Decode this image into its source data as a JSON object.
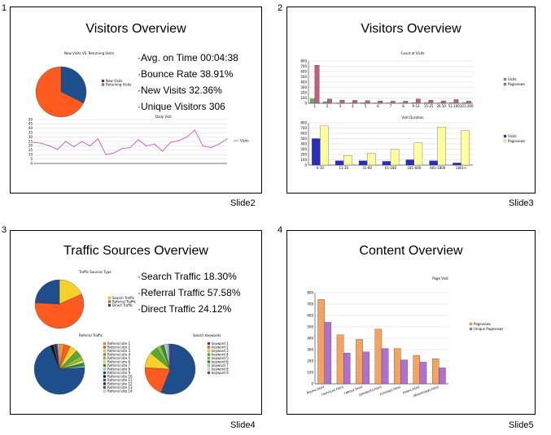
{
  "slides": [
    {
      "number": "1",
      "title": "Visitors Overview",
      "caption": "Slide2",
      "bullets": [
        "Avg. on Time 00:04:38",
        "Bounce Rate 38.91%",
        "New Visits 32.36%",
        "Unique Visitors 306"
      ],
      "pie": {
        "title": "New Visits VS. Returning Visits",
        "legend": [
          "New Visits",
          "Returning Visits"
        ],
        "colors": [
          "#1f4e8c",
          "#ff5a1f"
        ],
        "values": [
          32.36,
          67.64
        ]
      },
      "line": {
        "title": "Daily Visit",
        "legend": "Visits",
        "color": "#c05cc0",
        "yticks": [
          "50",
          "45",
          "40",
          "35",
          "30",
          "25",
          "20",
          "15",
          "10",
          "5",
          "0"
        ],
        "values": [
          24,
          23,
          20,
          16,
          25,
          19,
          25,
          20,
          28,
          10,
          12,
          17,
          18,
          27,
          20,
          22,
          14,
          24,
          26,
          30,
          38,
          20,
          18,
          22,
          28
        ]
      }
    },
    {
      "number": "2",
      "title": "Visitors Overview",
      "caption": "Slide3",
      "count": {
        "title": "Count of Visits",
        "categories": [
          "1",
          "2",
          "3",
          "4",
          "5",
          "6",
          "7",
          "8",
          "9-14",
          "15-25",
          "26-50",
          "51-100",
          "101-200"
        ],
        "series": [
          {
            "name": "Visits",
            "color": "#63b163",
            "values": [
              85,
              30,
              5,
              5,
              10,
              5,
              5,
              5,
              10,
              10,
              5,
              10,
              10
            ]
          },
          {
            "name": "Pageviews",
            "color": "#c0607a",
            "values": [
              720,
              80,
              60,
              55,
              50,
              45,
              40,
              40,
              80,
              60,
              45,
              70,
              40
            ]
          }
        ],
        "ymax": 800,
        "yticks": [
          "800",
          "700",
          "600",
          "500",
          "400",
          "300",
          "200",
          "100",
          "0"
        ]
      },
      "duration": {
        "title": "Visit Duration",
        "categories": [
          "0-10",
          "11-30",
          "31-60",
          "61-180",
          "181-600",
          "601-1800",
          "1801+"
        ],
        "series": [
          {
            "name": "Visits",
            "color": "#2b2bc0",
            "values": [
              500,
              80,
              80,
              70,
              100,
              80,
              40
            ]
          },
          {
            "name": "Pageviews",
            "color": "#ffffa0",
            "values": [
              740,
              180,
              220,
              300,
              420,
              720,
              650
            ]
          }
        ],
        "ymax": 800,
        "yticks": [
          "800",
          "700",
          "600",
          "500",
          "400",
          "300",
          "200",
          "100",
          "0"
        ]
      }
    },
    {
      "number": "3",
      "title": "Traffic Sources Overview",
      "caption": "Slide4",
      "bullets": [
        "Search Traffic 18.30%",
        "Referral Traffic 57.58%",
        "Direct Traffic 24.12%"
      ],
      "pie_main": {
        "title": "Traffic Sources Type",
        "legend": [
          "Search Traffic",
          "Referral Traffic",
          "Direct Traffic"
        ],
        "colors": [
          "#f5d22a",
          "#ff5a1f",
          "#1f4e8c"
        ],
        "values": [
          18.3,
          57.58,
          24.12
        ]
      },
      "pie_referral": {
        "title": "Referral Traffic",
        "legend": [
          "Referral site 1",
          "Referral site 2",
          "Referral site 3",
          "Referral site 4",
          "Referral site 5",
          "Referral site 6",
          "Referral site 7",
          "Referral site 8",
          "Referral site 9",
          "Referral site 10",
          "Referral site 11",
          "Referral site 12",
          "Referral site 13",
          "Referral site 14"
        ],
        "colors": [
          "#f39a2a",
          "#ff5a1f",
          "#f5d22a",
          "#55aa33",
          "#8fbf3f",
          "#dde35b",
          "#2b8f3f",
          "#a0d0e0",
          "#1f4e8c",
          "#111111",
          "#555555",
          "#0a3060",
          "#7a3f99",
          "#e0e0e0"
        ],
        "values": [
          3,
          4,
          5,
          4,
          3,
          2,
          2,
          1,
          70,
          2,
          1,
          1,
          1,
          1
        ]
      },
      "pie_search": {
        "title": "Search Keywords",
        "legend": [
          "keyword 1",
          "keyword 2",
          "keyword 3",
          "keyword 4",
          "keyword 5",
          "keyword 6",
          "keyword 7",
          "keyword 8",
          "keyword 9"
        ],
        "colors": [
          "#1f4e8c",
          "#ff5a1f",
          "#f5d22a",
          "#55aa33",
          "#8fbf3f",
          "#2b8f3f",
          "#a0d0e0",
          "#e0e0e0",
          "#7a3f99"
        ],
        "values": [
          56,
          20,
          10,
          5,
          3,
          2,
          2,
          1,
          1
        ]
      }
    },
    {
      "number": "4",
      "title": "Content Overview",
      "caption": "Slide5",
      "chart": {
        "title": "Page Visit",
        "categories": [
          "/home.html",
          "/services.html",
          "/about.html",
          "/products.html",
          "/contact.html",
          "/news.html",
          "/downloads.html"
        ],
        "series": [
          {
            "name": "Pageviews",
            "color": "#f4a460",
            "values": [
              740,
              430,
              390,
              480,
              310,
              250,
              220
            ]
          },
          {
            "name": "Unique Pageviews",
            "color": "#b070d0",
            "values": [
              540,
              270,
              280,
              310,
              210,
              190,
              140
            ]
          }
        ],
        "ymax": 800,
        "yticks": [
          "800",
          "700",
          "600",
          "500",
          "400",
          "300",
          "200",
          "100",
          "0"
        ]
      }
    }
  ]
}
